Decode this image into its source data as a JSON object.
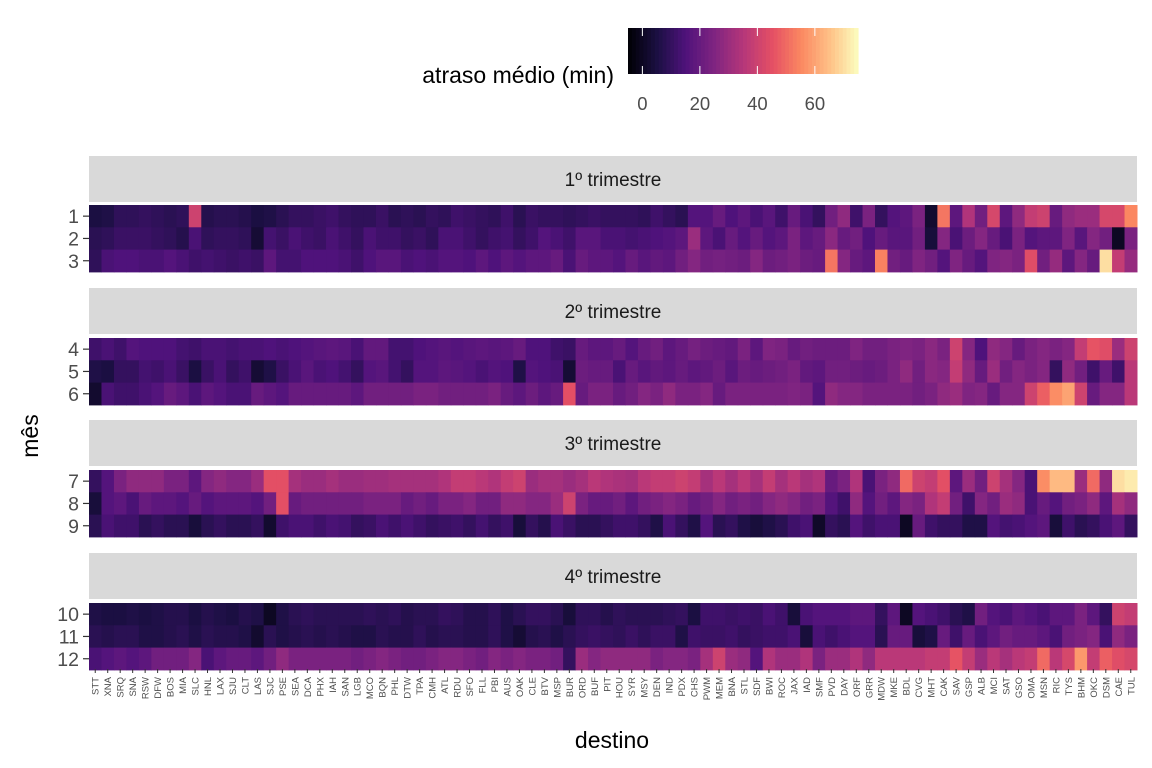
{
  "chart_data": {
    "type": "heatmap",
    "title": "",
    "xlabel": "destino",
    "ylabel": "mês",
    "legend": {
      "title": "atraso médio (min)",
      "position": "top",
      "range": [
        -5,
        75
      ],
      "ticks": [
        0,
        20,
        40,
        60
      ],
      "colormap": "magma"
    },
    "x_categories": [
      "STT",
      "XNA",
      "SRQ",
      "SNA",
      "RSW",
      "DFW",
      "BOS",
      "MIA",
      "SLC",
      "HNL",
      "LAX",
      "SJU",
      "CLT",
      "LAS",
      "SJC",
      "PSE",
      "SEA",
      "DCA",
      "PHX",
      "IAH",
      "SAN",
      "LGB",
      "MCO",
      "BQN",
      "PHL",
      "DTW",
      "TPA",
      "CMH",
      "ATL",
      "RDU",
      "SFO",
      "FLL",
      "PBI",
      "AUS",
      "OAK",
      "CLE",
      "BTV",
      "MSP",
      "BUR",
      "ORD",
      "BUF",
      "PIT",
      "HOU",
      "SYR",
      "MSY",
      "DEN",
      "IND",
      "PDX",
      "CHS",
      "PWM",
      "MEM",
      "BNA",
      "STL",
      "SDF",
      "BWI",
      "ROC",
      "JAX",
      "IAD",
      "SMF",
      "PVD",
      "DAY",
      "ORF",
      "GRR",
      "MDW",
      "MKE",
      "BDL",
      "CVG",
      "MHT",
      "CAK",
      "SAV",
      "GSP",
      "ALB",
      "MCI",
      "SAT",
      "GSO",
      "OMA",
      "MSN",
      "RIC",
      "TYS",
      "BHM",
      "OKC",
      "DSM",
      "CAE",
      "TUL"
    ],
    "facets": [
      {
        "label": "1º trimestre",
        "months": [
          "1",
          "2",
          "3"
        ]
      },
      {
        "label": "2º trimestre",
        "months": [
          "4",
          "5",
          "6"
        ]
      },
      {
        "label": "3º trimestre",
        "months": [
          "7",
          "8",
          "9"
        ]
      },
      {
        "label": "4º trimestre",
        "months": [
          "10",
          "11",
          "12"
        ]
      }
    ],
    "values": {
      "1": [
        5,
        6,
        9,
        9,
        10,
        9,
        8,
        9,
        40,
        7,
        8,
        8,
        7,
        5,
        6,
        8,
        10,
        10,
        11,
        12,
        10,
        9,
        9,
        11,
        8,
        9,
        8,
        10,
        9,
        12,
        11,
        10,
        9,
        12,
        8,
        11,
        10,
        10,
        9,
        10,
        11,
        10,
        10,
        10,
        9,
        12,
        10,
        8,
        16,
        16,
        20,
        15,
        18,
        14,
        17,
        12,
        20,
        14,
        10,
        22,
        28,
        12,
        24,
        10,
        16,
        18,
        24,
        2,
        52,
        18,
        34,
        22,
        42,
        18,
        28,
        38,
        40,
        20,
        28,
        30,
        30,
        42,
        42,
        55
      ],
      "2": [
        8,
        9,
        11,
        11,
        11,
        10,
        9,
        7,
        14,
        9,
        10,
        10,
        9,
        3,
        13,
        11,
        14,
        12,
        11,
        14,
        12,
        10,
        14,
        12,
        12,
        10,
        11,
        9,
        14,
        14,
        12,
        10,
        12,
        13,
        10,
        12,
        16,
        14,
        12,
        17,
        17,
        14,
        14,
        13,
        14,
        15,
        16,
        18,
        30,
        18,
        14,
        20,
        16,
        20,
        16,
        18,
        24,
        18,
        20,
        27,
        20,
        22,
        15,
        20,
        17,
        17,
        22,
        4,
        26,
        14,
        21,
        26,
        20,
        14,
        24,
        16,
        18,
        18,
        25,
        17,
        26,
        22,
        0,
        24
      ],
      "3": [
        9,
        14,
        15,
        15,
        14,
        14,
        16,
        14,
        12,
        13,
        12,
        11,
        12,
        11,
        18,
        13,
        13,
        15,
        15,
        15,
        14,
        12,
        15,
        17,
        17,
        14,
        15,
        14,
        16,
        16,
        15,
        18,
        15,
        18,
        16,
        18,
        18,
        20,
        14,
        20,
        18,
        18,
        16,
        20,
        17,
        19,
        18,
        22,
        26,
        22,
        23,
        22,
        21,
        26,
        21,
        22,
        24,
        21,
        20,
        52,
        26,
        20,
        18,
        54,
        22,
        20,
        25,
        22,
        16,
        25,
        20,
        16,
        25,
        26,
        24,
        44,
        22,
        29,
        18,
        26,
        20,
        70,
        38,
        29
      ],
      "4": [
        12,
        14,
        12,
        16,
        15,
        15,
        15,
        13,
        12,
        14,
        14,
        13,
        14,
        14,
        15,
        14,
        15,
        16,
        17,
        18,
        17,
        14,
        19,
        19,
        13,
        13,
        15,
        16,
        17,
        16,
        17,
        18,
        17,
        18,
        20,
        15,
        15,
        12,
        11,
        20,
        18,
        18,
        20,
        16,
        20,
        22,
        18,
        20,
        23,
        21,
        20,
        19,
        24,
        18,
        25,
        24,
        20,
        22,
        21,
        21,
        21,
        25,
        22,
        22,
        24,
        25,
        24,
        27,
        24,
        40,
        26,
        15,
        28,
        26,
        20,
        24,
        26,
        24,
        26,
        38,
        46,
        44,
        30,
        40
      ],
      "5": [
        6,
        5,
        10,
        10,
        13,
        12,
        14,
        11,
        5,
        11,
        14,
        10,
        12,
        3,
        6,
        11,
        14,
        17,
        14,
        15,
        13,
        10,
        16,
        17,
        13,
        10,
        16,
        16,
        18,
        17,
        16,
        14,
        16,
        15,
        6,
        16,
        15,
        14,
        3,
        21,
        20,
        20,
        14,
        20,
        17,
        19,
        18,
        20,
        18,
        19,
        21,
        17,
        21,
        20,
        21,
        22,
        24,
        19,
        18,
        22,
        22,
        21,
        20,
        21,
        24,
        28,
        22,
        27,
        26,
        38,
        28,
        20,
        30,
        22,
        26,
        24,
        26,
        10,
        28,
        22,
        12,
        20,
        12,
        36
      ],
      "6": [
        2,
        14,
        12,
        12,
        14,
        16,
        20,
        18,
        14,
        18,
        16,
        14,
        14,
        20,
        18,
        16,
        20,
        20,
        20,
        20,
        20,
        18,
        22,
        22,
        22,
        22,
        24,
        24,
        22,
        22,
        22,
        22,
        24,
        20,
        18,
        21,
        18,
        20,
        45,
        20,
        24,
        24,
        20,
        22,
        26,
        24,
        28,
        24,
        24,
        26,
        20,
        24,
        24,
        24,
        24,
        24,
        25,
        24,
        16,
        28,
        26,
        26,
        24,
        24,
        24,
        24,
        22,
        24,
        28,
        30,
        25,
        26,
        20,
        26,
        26,
        40,
        48,
        56,
        60,
        40,
        20,
        26,
        26,
        36
      ],
      "7": [
        10,
        16,
        24,
        28,
        28,
        28,
        24,
        24,
        18,
        26,
        28,
        26,
        26,
        30,
        45,
        45,
        32,
        30,
        30,
        32,
        30,
        30,
        31,
        31,
        32,
        32,
        32,
        32,
        34,
        38,
        38,
        36,
        34,
        38,
        40,
        30,
        32,
        32,
        30,
        32,
        36,
        34,
        33,
        32,
        36,
        38,
        38,
        40,
        38,
        32,
        36,
        32,
        36,
        32,
        38,
        32,
        36,
        32,
        34,
        20,
        24,
        34,
        14,
        24,
        28,
        50,
        40,
        38,
        45,
        18,
        30,
        22,
        40,
        32,
        26,
        14,
        56,
        64,
        64,
        30,
        50,
        28,
        70,
        72
      ],
      "8": [
        4,
        16,
        18,
        14,
        20,
        18,
        18,
        16,
        20,
        16,
        18,
        18,
        18,
        16,
        22,
        45,
        20,
        22,
        22,
        22,
        22,
        22,
        24,
        24,
        24,
        20,
        22,
        20,
        24,
        24,
        26,
        22,
        22,
        28,
        28,
        26,
        26,
        30,
        40,
        24,
        20,
        20,
        22,
        18,
        22,
        24,
        26,
        24,
        20,
        22,
        26,
        22,
        24,
        22,
        26,
        28,
        26,
        22,
        24,
        16,
        12,
        28,
        16,
        22,
        18,
        26,
        24,
        34,
        38,
        22,
        12,
        26,
        22,
        30,
        28,
        14,
        20,
        16,
        22,
        24,
        28,
        18,
        32,
        28
      ],
      "9": [
        8,
        14,
        12,
        12,
        8,
        10,
        8,
        8,
        4,
        8,
        10,
        8,
        8,
        10,
        2,
        12,
        14,
        14,
        12,
        14,
        13,
        10,
        11,
        14,
        12,
        14,
        12,
        10,
        11,
        12,
        10,
        13,
        10,
        12,
        4,
        10,
        7,
        14,
        11,
        8,
        8,
        10,
        12,
        12,
        10,
        6,
        14,
        10,
        6,
        16,
        8,
        10,
        6,
        4,
        6,
        8,
        12,
        14,
        1,
        10,
        8,
        16,
        12,
        14,
        14,
        0,
        20,
        12,
        10,
        10,
        6,
        6,
        16,
        13,
        14,
        16,
        18,
        4,
        12,
        8,
        10,
        14,
        18,
        10
      ],
      "10": [
        6,
        5,
        5,
        6,
        5,
        6,
        7,
        7,
        5,
        7,
        6,
        5,
        7,
        6,
        0,
        6,
        8,
        9,
        8,
        8,
        8,
        8,
        9,
        8,
        9,
        7,
        8,
        8,
        10,
        9,
        7,
        7,
        9,
        6,
        8,
        10,
        10,
        8,
        4,
        9,
        9,
        7,
        9,
        8,
        8,
        8,
        9,
        10,
        5,
        12,
        12,
        11,
        12,
        11,
        14,
        12,
        4,
        14,
        16,
        16,
        16,
        18,
        18,
        10,
        18,
        0,
        16,
        14,
        12,
        8,
        6,
        22,
        16,
        14,
        18,
        16,
        14,
        18,
        18,
        24,
        18,
        10,
        40,
        38
      ],
      "11": [
        8,
        7,
        8,
        8,
        6,
        6,
        7,
        8,
        6,
        8,
        7,
        7,
        6,
        2,
        8,
        6,
        7,
        8,
        7,
        8,
        7,
        6,
        6,
        8,
        7,
        7,
        9,
        7,
        8,
        8,
        7,
        7,
        9,
        6,
        3,
        7,
        8,
        6,
        8,
        10,
        11,
        10,
        9,
        11,
        9,
        11,
        11,
        6,
        12,
        11,
        11,
        12,
        10,
        11,
        12,
        12,
        14,
        4,
        14,
        12,
        14,
        16,
        16,
        8,
        20,
        20,
        4,
        6,
        20,
        12,
        20,
        14,
        18,
        22,
        20,
        20,
        18,
        14,
        22,
        24,
        26,
        14,
        28,
        24
      ],
      "12": [
        14,
        16,
        18,
        16,
        18,
        22,
        22,
        22,
        26,
        14,
        18,
        20,
        20,
        18,
        22,
        28,
        24,
        24,
        24,
        24,
        24,
        22,
        24,
        26,
        24,
        22,
        22,
        24,
        26,
        26,
        24,
        22,
        26,
        24,
        26,
        24,
        24,
        22,
        10,
        30,
        26,
        28,
        28,
        28,
        28,
        24,
        26,
        26,
        24,
        32,
        40,
        30,
        28,
        16,
        34,
        30,
        30,
        34,
        24,
        30,
        30,
        34,
        28,
        36,
        36,
        36,
        36,
        38,
        38,
        46,
        38,
        30,
        36,
        32,
        36,
        38,
        50,
        36,
        42,
        58,
        38,
        48,
        44,
        42
      ]
    }
  }
}
